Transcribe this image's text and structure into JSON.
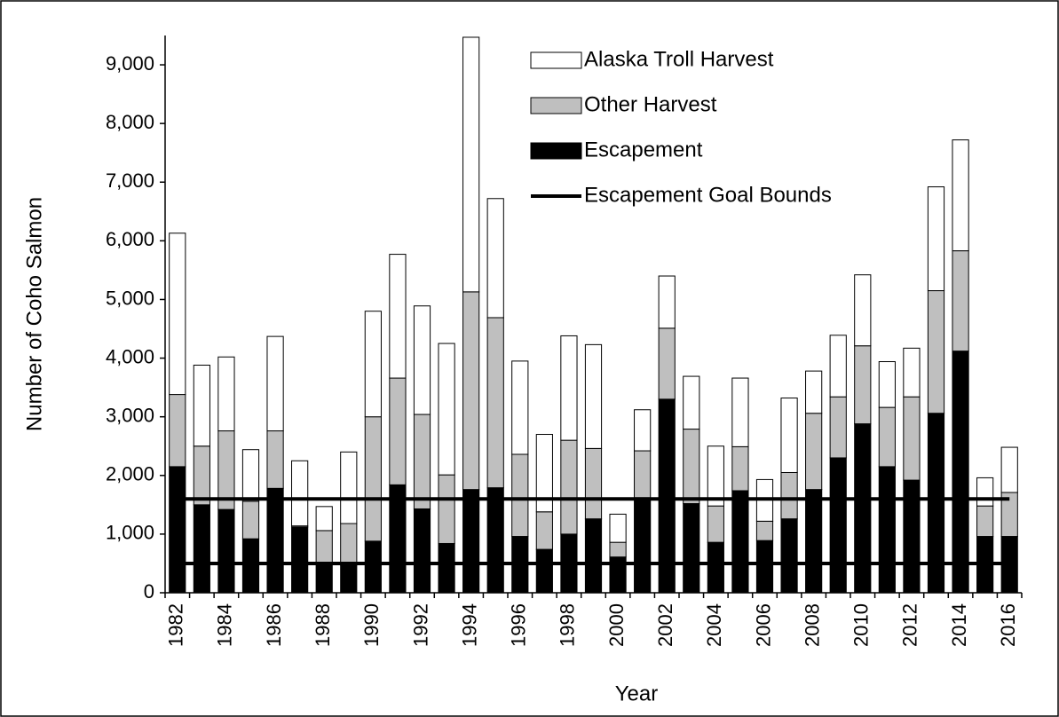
{
  "chart_data": {
    "type": "stacked_bar",
    "x_label": "Year",
    "y_label": "Number of Coho Salmon",
    "categories": [
      "1982",
      null,
      "1984",
      null,
      "1986",
      null,
      "1988",
      null,
      "1990",
      null,
      "1992",
      null,
      "1994",
      null,
      "1996",
      null,
      "1998",
      null,
      "2000",
      null,
      "2002",
      null,
      "2004",
      null,
      "2006",
      null,
      "2008",
      null,
      "2010",
      null,
      "2012",
      null,
      "2014",
      null,
      "2016"
    ],
    "series": [
      {
        "name": "Escapement",
        "color": "#000000",
        "values": [
          2150,
          1500,
          1420,
          920,
          1780,
          1120,
          520,
          470,
          880,
          1840,
          1430,
          840,
          1760,
          1790,
          960,
          740,
          1000,
          1260,
          610,
          1620,
          3300,
          1520,
          860,
          1740,
          890,
          1260,
          1760,
          2300,
          2880,
          2150,
          1920,
          3060,
          4120,
          960,
          960
        ]
      },
      {
        "name": "Other Harvest",
        "color": "#bfbfbf",
        "values": [
          1230,
          1000,
          1340,
          640,
          980,
          20,
          540,
          710,
          2120,
          1820,
          1610,
          1170,
          3370,
          2900,
          1400,
          640,
          1600,
          1200,
          250,
          800,
          1210,
          1270,
          620,
          750,
          330,
          790,
          1300,
          1040,
          1330,
          1010,
          1420,
          2090,
          1710,
          520,
          750
        ]
      },
      {
        "name": "Alaska Troll Harvest",
        "color": "#ffffff",
        "values": [
          2750,
          1380,
          1260,
          880,
          1610,
          1110,
          410,
          1220,
          1800,
          2110,
          1850,
          2240,
          4340,
          2030,
          1590,
          1320,
          1780,
          1770,
          480,
          700,
          890,
          900,
          1020,
          1170,
          710,
          1270,
          720,
          1050,
          1210,
          780,
          830,
          1770,
          1890,
          480,
          770
        ]
      }
    ],
    "reference_lines": {
      "name": "Escapement Goal Bounds",
      "color": "#000000",
      "values": [
        500,
        1600
      ]
    },
    "ylim": [
      0,
      9500
    ],
    "yticks": [
      0,
      {
        "value": 1000,
        "label": "1,000"
      },
      {
        "value": 2000,
        "label": "2,000"
      },
      {
        "value": 3000,
        "label": "3,000"
      },
      {
        "value": 4000,
        "label": "4,000"
      },
      {
        "value": 5000,
        "label": "5,000"
      },
      {
        "value": 6000,
        "label": "6,000"
      },
      {
        "value": 7000,
        "label": "7,000"
      },
      {
        "value": 8000,
        "label": "8,000"
      },
      {
        "value": 9000,
        "label": "9,000"
      }
    ],
    "grid": false,
    "legend": "top-right"
  }
}
